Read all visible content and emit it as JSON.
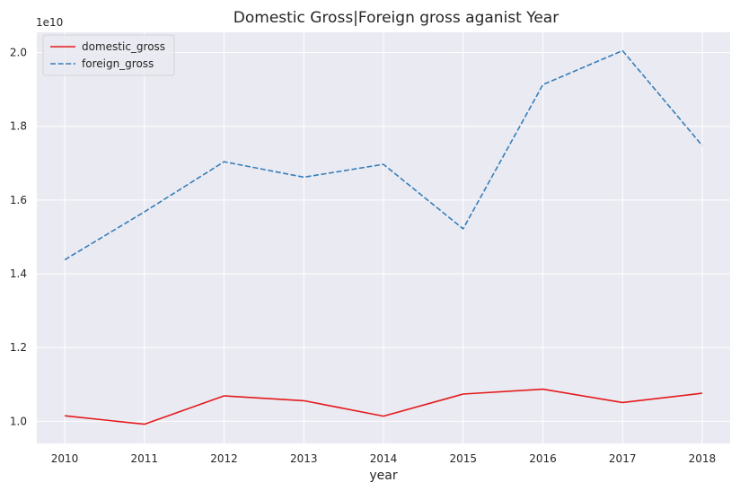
{
  "chart_data": {
    "type": "line",
    "title": "Domestic Gross|Foreign gross aganist Year",
    "xlabel": "year",
    "ylabel": "",
    "y_offset_label": "1e10",
    "y_scale": 10000000000,
    "x": [
      2010,
      2011,
      2012,
      2013,
      2014,
      2015,
      2016,
      2017,
      2018
    ],
    "x_tick_labels": [
      "2010",
      "2011",
      "2012",
      "2013",
      "2014",
      "2015",
      "2016",
      "2017",
      "2018"
    ],
    "y_ticks": [
      1.0,
      1.2,
      1.4,
      1.6,
      1.8,
      2.0
    ],
    "y_tick_labels": [
      "1.0",
      "1.2",
      "1.4",
      "1.6",
      "1.8",
      "2.0"
    ],
    "xlim": [
      2009.65,
      2018.35
    ],
    "ylim": [
      0.94,
      2.055
    ],
    "grid": true,
    "legend_position": "top-left",
    "series": [
      {
        "name": "domestic_gross",
        "color": "#e41a1c",
        "dash": "solid",
        "values": [
          1.015,
          0.992,
          1.069,
          1.056,
          1.014,
          1.074,
          1.087,
          1.051,
          1.076
        ]
      },
      {
        "name": "foreign_gross",
        "color": "#377eb8",
        "dash": "dashed",
        "values": [
          1.438,
          1.568,
          1.704,
          1.662,
          1.697,
          1.522,
          1.913,
          2.005,
          1.748
        ]
      }
    ],
    "colors": {
      "background": "#eaeaf2",
      "grid": "#ffffff",
      "text": "#262626"
    }
  }
}
